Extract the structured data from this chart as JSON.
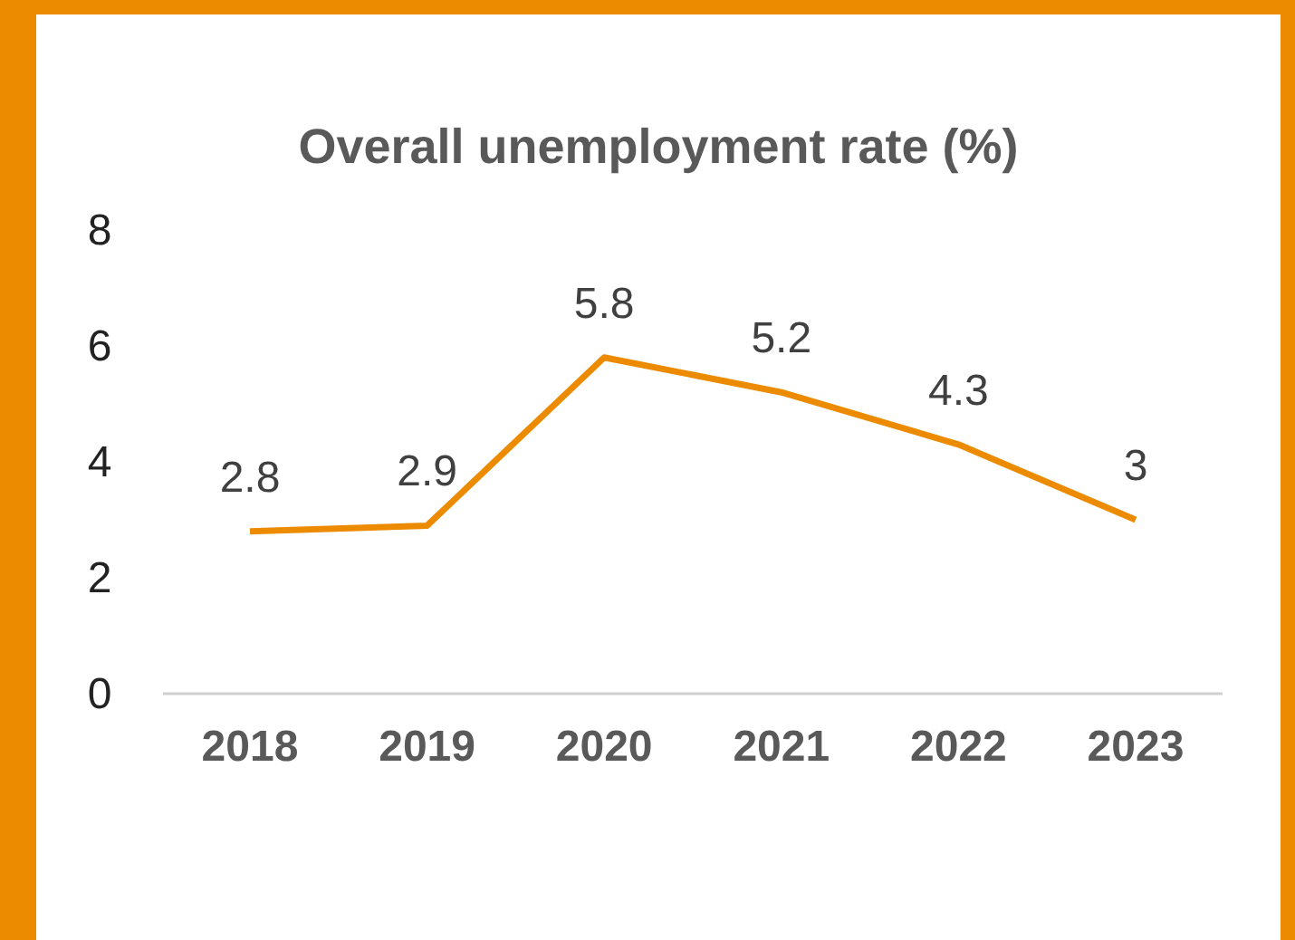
{
  "chart_data": {
    "type": "line",
    "title": "Overall unemployment rate (%)",
    "categories": [
      "2018",
      "2019",
      "2020",
      "2021",
      "2022",
      "2023"
    ],
    "values": [
      2.8,
      2.9,
      5.8,
      5.2,
      4.3,
      3
    ],
    "color": "#ed8b00",
    "ylim": [
      0,
      8
    ],
    "yticks": [
      0,
      2,
      4,
      6,
      8
    ],
    "data_labels": true,
    "marker": "none",
    "grid": false,
    "legend": false
  }
}
